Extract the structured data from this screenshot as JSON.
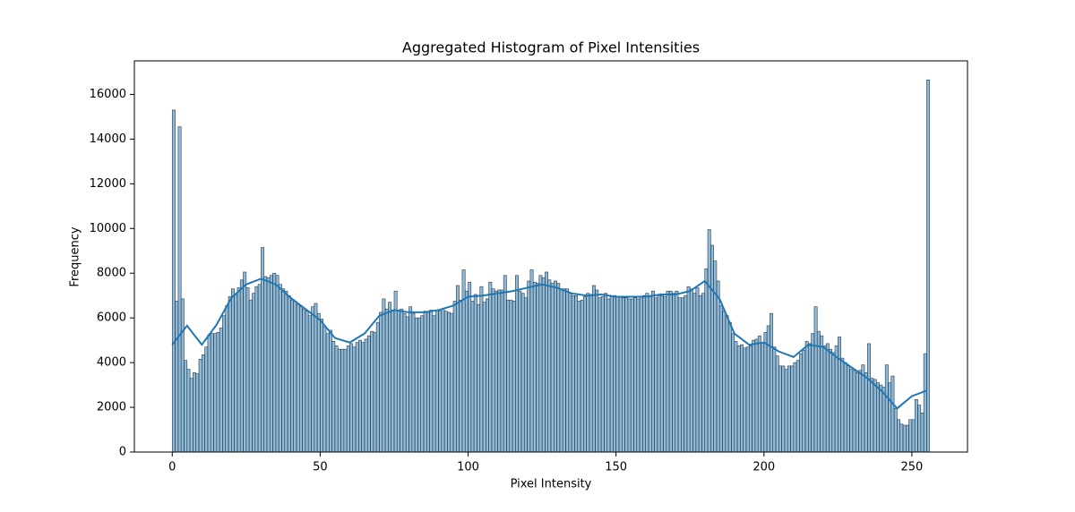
{
  "chart_data": {
    "type": "histogram",
    "title": "Aggregated Histogram of Pixel Intensities",
    "xlabel": "Pixel Intensity",
    "ylabel": "Frequency",
    "color": "#1f77b4",
    "bins": [
      0,
      1,
      2,
      3,
      4,
      5,
      6,
      7,
      8,
      9,
      10,
      11,
      12,
      13,
      14,
      15,
      16,
      17,
      18,
      19,
      20,
      21,
      22,
      23,
      24,
      25,
      26,
      27,
      28,
      29,
      30,
      31,
      32,
      33,
      34,
      35,
      36,
      37,
      38,
      39,
      40,
      41,
      42,
      43,
      44,
      45,
      46,
      47,
      48,
      49,
      50,
      51,
      52,
      53,
      54,
      55,
      56,
      57,
      58,
      59,
      60,
      61,
      62,
      63,
      64,
      65,
      66,
      67,
      68,
      69,
      70,
      71,
      72,
      73,
      74,
      75,
      76,
      77,
      78,
      79,
      80,
      81,
      82,
      83,
      84,
      85,
      86,
      87,
      88,
      89,
      90,
      91,
      92,
      93,
      94,
      95,
      96,
      97,
      98,
      99,
      100,
      101,
      102,
      103,
      104,
      105,
      106,
      107,
      108,
      109,
      110,
      111,
      112,
      113,
      114,
      115,
      116,
      117,
      118,
      119,
      120,
      121,
      122,
      123,
      124,
      125,
      126,
      127,
      128,
      129,
      130,
      131,
      132,
      133,
      134,
      135,
      136,
      137,
      138,
      139,
      140,
      141,
      142,
      143,
      144,
      145,
      146,
      147,
      148,
      149,
      150,
      151,
      152,
      153,
      154,
      155,
      156,
      157,
      158,
      159,
      160,
      161,
      162,
      163,
      164,
      165,
      166,
      167,
      168,
      169,
      170,
      171,
      172,
      173,
      174,
      175,
      176,
      177,
      178,
      179,
      180,
      181,
      182,
      183,
      184,
      185,
      186,
      187,
      188,
      189,
      190,
      191,
      192,
      193,
      194,
      195,
      196,
      197,
      198,
      199,
      200,
      201,
      202,
      203,
      204,
      205,
      206,
      207,
      208,
      209,
      210,
      211,
      212,
      213,
      214,
      215,
      216,
      217,
      218,
      219,
      220,
      221,
      222,
      223,
      224,
      225,
      226,
      227,
      228,
      229,
      230,
      231,
      232,
      233,
      234,
      235,
      236,
      237,
      238,
      239,
      240,
      241,
      242,
      243,
      244,
      245,
      246,
      247,
      248,
      249,
      250,
      251,
      252,
      253,
      254,
      255,
      256
    ],
    "values": [
      15300,
      6750,
      14550,
      6850,
      4100,
      3700,
      3300,
      3550,
      3500,
      4150,
      4350,
      4700,
      5250,
      5300,
      5300,
      5350,
      5550,
      6100,
      6550,
      6950,
      7300,
      7050,
      7350,
      7700,
      8050,
      7350,
      6800,
      7100,
      7400,
      7500,
      9150,
      7850,
      7800,
      7900,
      8000,
      7900,
      7500,
      7300,
      7200,
      7000,
      6800,
      6750,
      6600,
      6500,
      6400,
      6300,
      6100,
      6500,
      6650,
      6200,
      5950,
      5600,
      5300,
      5450,
      4950,
      4750,
      4600,
      4600,
      4600,
      4750,
      4850,
      4700,
      4900,
      5000,
      4900,
      5050,
      5200,
      5400,
      5350,
      5800,
      6250,
      6850,
      6400,
      6700,
      6350,
      7200,
      6350,
      6400,
      6200,
      6050,
      6500,
      6200,
      6000,
      6000,
      6100,
      6300,
      6250,
      6350,
      6100,
      6350,
      6300,
      6400,
      6300,
      6250,
      6200,
      6750,
      7450,
      6800,
      8150,
      7200,
      7600,
      6750,
      7050,
      6600,
      7400,
      6700,
      6850,
      7600,
      7300,
      7200,
      7250,
      7250,
      7900,
      6800,
      6800,
      6750,
      7900,
      7200,
      7100,
      6900,
      7650,
      8150,
      7600,
      7550,
      7900,
      7800,
      8050,
      7700,
      7550,
      7650,
      7550,
      7300,
      7300,
      7300,
      7100,
      7000,
      7000,
      6750,
      6800,
      6950,
      7100,
      7050,
      7450,
      7250,
      6900,
      6950,
      7100,
      6850,
      6950,
      7000,
      6950,
      6950,
      6900,
      6900,
      6850,
      6850,
      6900,
      6850,
      6950,
      7000,
      7100,
      6950,
      7200,
      6900,
      7000,
      7000,
      6950,
      7200,
      7200,
      7100,
      7200,
      6900,
      6900,
      7000,
      7400,
      7300,
      7100,
      7350,
      7000,
      7100,
      8200,
      9950,
      9250,
      8550,
      7650,
      6550,
      6300,
      6100,
      5800,
      5300,
      4950,
      4750,
      4800,
      4650,
      4700,
      4750,
      5000,
      5050,
      5200,
      4900,
      5350,
      5650,
      6200,
      4700,
      4300,
      3850,
      3850,
      3700,
      3850,
      3850,
      4000,
      4100,
      4400,
      4550,
      4950,
      4850,
      5300,
      6500,
      5400,
      5200,
      4750,
      4850,
      4600,
      4450,
      4750,
      5150,
      4200,
      4000,
      3850,
      3700,
      3650,
      3550,
      3650,
      3900,
      3550,
      4850,
      3300,
      3250,
      3100,
      3000,
      2900,
      3900,
      3100,
      3400,
      1950,
      1450,
      1250,
      1200,
      1200,
      1450,
      1450,
      2350,
      2100,
      1750,
      4400,
      16650
    ],
    "kde": {
      "color": "#1f77b4",
      "x": [
        0,
        5,
        10,
        15,
        20,
        25,
        30,
        35,
        40,
        45,
        50,
        55,
        60,
        65,
        70,
        75,
        80,
        85,
        90,
        95,
        100,
        105,
        110,
        115,
        120,
        125,
        130,
        135,
        140,
        145,
        150,
        155,
        160,
        165,
        170,
        175,
        180,
        185,
        190,
        195,
        200,
        205,
        210,
        215,
        220,
        225,
        230,
        235,
        240,
        245,
        250,
        255
      ],
      "values": [
        4800,
        5650,
        4800,
        5700,
        6900,
        7500,
        7750,
        7500,
        6900,
        6400,
        5900,
        5100,
        4900,
        5300,
        6100,
        6350,
        6250,
        6250,
        6350,
        6550,
        6950,
        7000,
        7100,
        7200,
        7350,
        7500,
        7350,
        7100,
        7000,
        7050,
        6950,
        6950,
        6950,
        7050,
        7050,
        7200,
        7650,
        6850,
        5300,
        4800,
        4900,
        4500,
        4250,
        4800,
        4700,
        4200,
        3750,
        3300,
        2700,
        1950,
        2500,
        2750
      ]
    },
    "xlim": [
      -12.8,
      268.8
    ],
    "xticks": [
      0,
      50,
      100,
      150,
      200,
      250
    ],
    "ylim": [
      0,
      17500
    ],
    "yticks": [
      0,
      2000,
      4000,
      6000,
      8000,
      10000,
      12000,
      14000,
      16000
    ]
  }
}
